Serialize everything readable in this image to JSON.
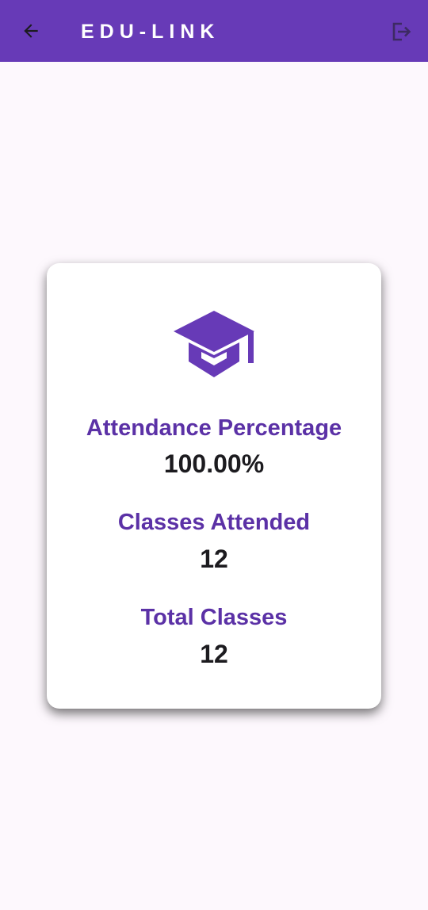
{
  "app_bar": {
    "title": "EDU-LINK",
    "back_icon": "arrow-back-icon",
    "logout_icon": "logout-icon",
    "background": "#673ab7"
  },
  "card": {
    "icon": "graduation-cap-icon",
    "stats": [
      {
        "label": "Attendance Percentage",
        "value": "100.00%"
      },
      {
        "label": "Classes Attended",
        "value": "12"
      },
      {
        "label": "Total Classes",
        "value": "12"
      }
    ]
  },
  "colors": {
    "accent": "#673ab7",
    "label_text": "#5b31a6",
    "value_text": "#1c1b1f",
    "page_background": "#fdf8fd",
    "card_background": "#ffffff"
  }
}
